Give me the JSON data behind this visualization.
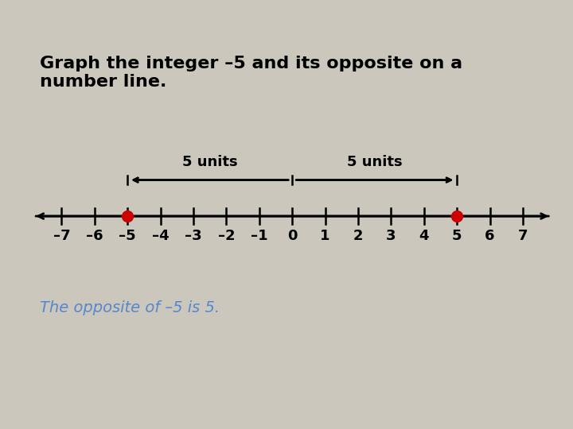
{
  "background_color": "#cbc7bc",
  "title_text": "Graph the integer –5 and its opposite on a\nnumber line.",
  "title_fontsize": 16,
  "title_color": "#000000",
  "title_bold": true,
  "tick_values": [
    -7,
    -6,
    -5,
    -4,
    -3,
    -2,
    -1,
    0,
    1,
    2,
    3,
    4,
    5,
    6,
    7
  ],
  "tick_labels": [
    "–7",
    "–6",
    "–5",
    "–4",
    "–3",
    "–2",
    "–1",
    "0",
    "1",
    "2",
    "3",
    "4",
    "5",
    "6",
    "7"
  ],
  "points": [
    -5,
    5
  ],
  "point_color": "#cc0000",
  "units_label1": "5 units",
  "units_label2": "5 units",
  "units_label_fontsize": 13,
  "units_label_color": "#000000",
  "italic_text": "The opposite of –5 is 5.",
  "italic_fontsize": 14,
  "italic_color": "#5588cc",
  "tick_fontsize": 13
}
